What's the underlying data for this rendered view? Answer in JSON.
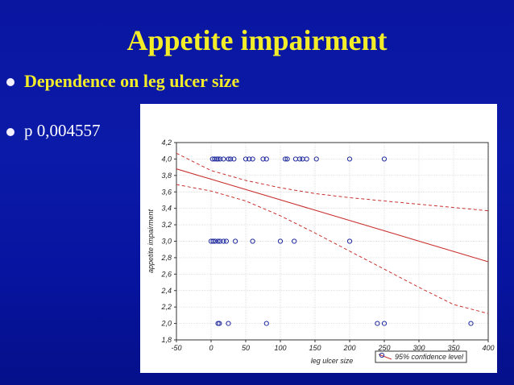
{
  "slide": {
    "title": "Appetite impairment",
    "bullets": [
      {
        "text": "Dependence on leg ulcer size"
      },
      {
        "text": "p 0,004557"
      }
    ]
  },
  "colors": {
    "title": "#f2ec29",
    "points": "#1f2a9e",
    "fit_line": "#c8322e"
  },
  "chart_data": {
    "type": "scatter",
    "title": "",
    "xlabel": "leg ulcer size",
    "ylabel": "appetite impairment",
    "xlim": [
      -50,
      400
    ],
    "ylim": [
      1.8,
      4.2
    ],
    "x_ticks": [
      -50,
      0,
      50,
      100,
      150,
      200,
      250,
      300,
      350,
      400
    ],
    "x_tick_labels": [
      "-50",
      "0",
      "50",
      "100",
      "150",
      "200",
      "250",
      "300",
      "350",
      "400"
    ],
    "y_ticks": [
      1.8,
      2.0,
      2.2,
      2.4,
      2.6,
      2.8,
      3.0,
      3.2,
      3.4,
      3.6,
      3.8,
      4.0,
      4.2
    ],
    "y_tick_labels": [
      "1,8",
      "2,0",
      "2,2",
      "2,4",
      "2,6",
      "2,8",
      "3,0",
      "3,2",
      "3,4",
      "3,6",
      "3,8",
      "4,0",
      "4,2"
    ],
    "grid": true,
    "legend": {
      "position": "bottom-right",
      "label": "95% confidence level"
    },
    "points": [
      {
        "x": 2,
        "y": 4.0
      },
      {
        "x": 5,
        "y": 4.0
      },
      {
        "x": 8,
        "y": 4.0
      },
      {
        "x": 10,
        "y": 4.0
      },
      {
        "x": 13,
        "y": 4.0
      },
      {
        "x": 18,
        "y": 4.0
      },
      {
        "x": 25,
        "y": 4.0
      },
      {
        "x": 28,
        "y": 4.0
      },
      {
        "x": 33,
        "y": 4.0
      },
      {
        "x": 50,
        "y": 4.0
      },
      {
        "x": 55,
        "y": 4.0
      },
      {
        "x": 60,
        "y": 4.0
      },
      {
        "x": 75,
        "y": 4.0
      },
      {
        "x": 80,
        "y": 4.0
      },
      {
        "x": 107,
        "y": 4.0
      },
      {
        "x": 110,
        "y": 4.0
      },
      {
        "x": 122,
        "y": 4.0
      },
      {
        "x": 128,
        "y": 4.0
      },
      {
        "x": 132,
        "y": 4.0
      },
      {
        "x": 138,
        "y": 4.0
      },
      {
        "x": 152,
        "y": 4.0
      },
      {
        "x": 200,
        "y": 4.0
      },
      {
        "x": 250,
        "y": 4.0
      },
      {
        "x": 0,
        "y": 3.0
      },
      {
        "x": 3,
        "y": 3.0
      },
      {
        "x": 6,
        "y": 3.0
      },
      {
        "x": 10,
        "y": 3.0
      },
      {
        "x": 13,
        "y": 3.0
      },
      {
        "x": 18,
        "y": 3.0
      },
      {
        "x": 22,
        "y": 3.0
      },
      {
        "x": 35,
        "y": 3.0
      },
      {
        "x": 60,
        "y": 3.0
      },
      {
        "x": 100,
        "y": 3.0
      },
      {
        "x": 120,
        "y": 3.0
      },
      {
        "x": 200,
        "y": 3.0
      },
      {
        "x": 10,
        "y": 2.0
      },
      {
        "x": 12,
        "y": 2.0
      },
      {
        "x": 25,
        "y": 2.0
      },
      {
        "x": 80,
        "y": 2.0
      },
      {
        "x": 240,
        "y": 2.0
      },
      {
        "x": 250,
        "y": 2.0
      },
      {
        "x": 375,
        "y": 2.0
      }
    ],
    "fit_line": {
      "x": [
        -50,
        400
      ],
      "y": [
        3.88,
        2.75
      ]
    },
    "confidence_band": {
      "upper": {
        "x": [
          -50,
          0,
          50,
          100,
          150,
          200,
          250,
          300,
          350,
          400
        ],
        "y": [
          4.07,
          3.86,
          3.74,
          3.65,
          3.58,
          3.53,
          3.49,
          3.45,
          3.41,
          3.37
        ]
      },
      "lower": {
        "x": [
          -50,
          0,
          50,
          100,
          150,
          200,
          250,
          300,
          350,
          400
        ],
        "y": [
          3.69,
          3.61,
          3.49,
          3.31,
          3.1,
          2.88,
          2.66,
          2.44,
          2.23,
          2.12
        ]
      }
    }
  }
}
